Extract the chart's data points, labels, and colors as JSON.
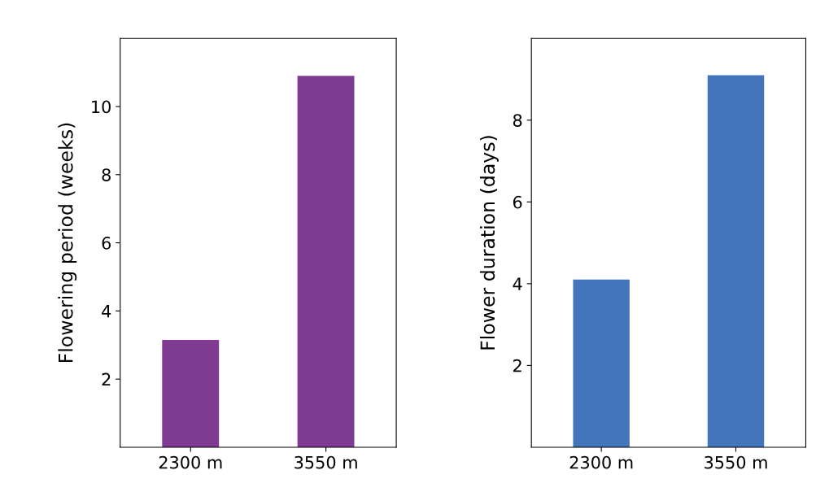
{
  "chart_data": [
    {
      "type": "bar",
      "ylabel": "Flowering period (weeks)",
      "categories": [
        "2300 m",
        "3550 m"
      ],
      "values": [
        3.15,
        10.9
      ],
      "color": "#7f3a92",
      "ylim": [
        0,
        12
      ],
      "yticks": [
        2,
        4,
        6,
        8,
        10
      ],
      "grid": false,
      "legend": false
    },
    {
      "type": "bar",
      "ylabel": "Flower duration (days)",
      "categories": [
        "2300 m",
        "3550 m"
      ],
      "values": [
        4.1,
        9.1
      ],
      "color": "#4375bb",
      "ylim": [
        0,
        10
      ],
      "yticks": [
        2,
        4,
        6,
        8
      ],
      "grid": false,
      "legend": false
    }
  ]
}
